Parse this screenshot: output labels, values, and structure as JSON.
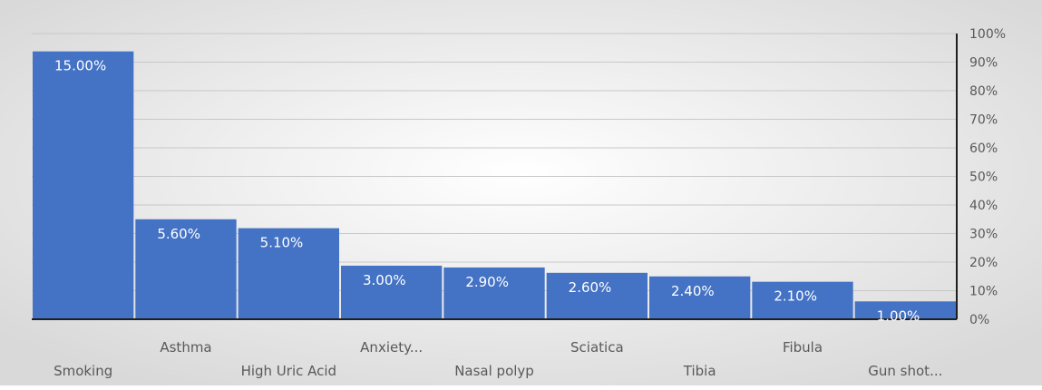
{
  "chart_data": {
    "type": "bar",
    "title": "",
    "xlabel": "",
    "ylabel": "",
    "categories": [
      "Smoking",
      "Asthma",
      "High Uric Acid",
      "Anxiety...",
      "Nasal polyp",
      "Sciatica",
      "Tibia",
      "Fibula",
      "Gun shot..."
    ],
    "values": [
      15.0,
      5.6,
      5.1,
      3.0,
      2.9,
      2.6,
      2.4,
      2.1,
      1.0
    ],
    "data_labels": [
      "15.00%",
      "5.60%",
      "5.10%",
      "3.00%",
      "2.90%",
      "2.60%",
      "2.40%",
      "2.10%",
      "1.00%"
    ],
    "ylim": [
      0,
      16
    ],
    "secondary_axis": {
      "position": "right",
      "ticks": [
        "0%",
        "10%",
        "20%",
        "30%",
        "40%",
        "50%",
        "60%",
        "70%",
        "80%",
        "90%",
        "100%"
      ]
    },
    "grid": true,
    "legend": "none",
    "colors": {
      "bar": "#4472c4",
      "background": "#ececec",
      "axis": "#1f1f1f"
    }
  }
}
